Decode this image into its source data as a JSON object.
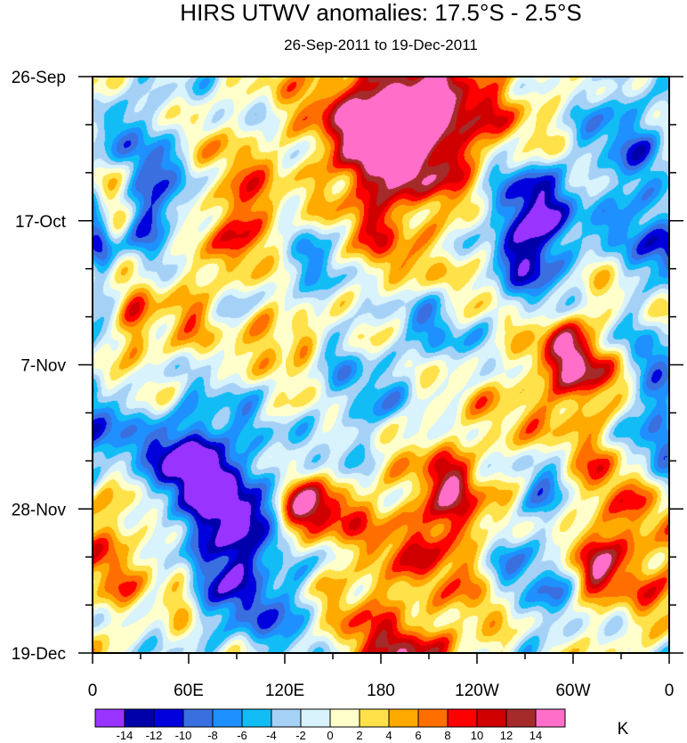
{
  "chart_data": {
    "type": "heatmap",
    "title": "HIRS UTWV anomalies: 17.5°S - 2.5°S",
    "subtitle": "26-Sep-2011 to 19-Dec-2011",
    "xlabel": "",
    "ylabel": "",
    "x_range_deg_east": [
      0,
      360
    ],
    "x_ticks": [
      {
        "deg": 0,
        "label": "0"
      },
      {
        "deg": 60,
        "label": "60E"
      },
      {
        "deg": 120,
        "label": "120E"
      },
      {
        "deg": 180,
        "label": "180"
      },
      {
        "deg": 240,
        "label": "120W"
      },
      {
        "deg": 300,
        "label": "60W"
      },
      {
        "deg": 360,
        "label": "0"
      }
    ],
    "y_range_days": [
      0,
      84
    ],
    "y_ticks": [
      {
        "day": 0,
        "label": "26-Sep"
      },
      {
        "day": 21,
        "label": "17-Oct"
      },
      {
        "day": 42,
        "label": "7-Nov"
      },
      {
        "day": 63,
        "label": "28-Nov"
      },
      {
        "day": 84,
        "label": "19-Dec"
      }
    ],
    "y_minor_tick_interval_days": 7,
    "color_levels": [
      -14,
      -12,
      -10,
      -8,
      -6,
      -4,
      -2,
      0,
      2,
      4,
      6,
      8,
      10,
      12,
      14
    ],
    "color_levels_text": [
      "-14",
      "-12",
      "-10",
      "-8",
      "-6",
      "-4",
      "-2",
      "0",
      "2",
      "4",
      "6",
      "8",
      "10",
      "12",
      "14"
    ],
    "colors": [
      "#9933ff",
      "#0000aa",
      "#0000dd",
      "#3a6fe0",
      "#1f90ff",
      "#12bdf6",
      "#a6d1f6",
      "#d8f3fc",
      "#ffffcc",
      "#ffe14a",
      "#ffaa00",
      "#ff6e00",
      "#ff0000",
      "#d00000",
      "#a52a2a",
      "#ff6ec8"
    ],
    "units": "K",
    "features": [
      {
        "lon": 190,
        "day": 8,
        "value": 14,
        "width_deg": 30,
        "width_days": 6
      },
      {
        "lon": 210,
        "day": 5,
        "value": 8,
        "width_deg": 50,
        "width_days": 9
      },
      {
        "lon": 180,
        "day": 20,
        "value": 6,
        "width_deg": 15,
        "width_days": 14
      },
      {
        "lon": 275,
        "day": 25,
        "value": -13,
        "width_deg": 18,
        "width_days": 7
      },
      {
        "lon": 265,
        "day": 19,
        "value": -8,
        "width_deg": 22,
        "width_days": 6
      },
      {
        "lon": 40,
        "day": 20,
        "value": -10,
        "width_deg": 14,
        "width_days": 5
      },
      {
        "lon": 30,
        "day": 10,
        "value": -6,
        "width_deg": 12,
        "width_days": 8
      },
      {
        "lon": 345,
        "day": 22,
        "value": -8,
        "width_deg": 14,
        "width_days": 5
      },
      {
        "lon": 330,
        "day": 8,
        "value": -7,
        "width_deg": 20,
        "width_days": 8
      },
      {
        "lon": 215,
        "day": 36,
        "value": -7,
        "width_deg": 30,
        "width_days": 5
      },
      {
        "lon": 130,
        "day": 29,
        "value": -5,
        "width_deg": 20,
        "width_days": 6
      },
      {
        "lon": 110,
        "day": 37,
        "value": 9,
        "width_deg": 8,
        "width_days": 3
      },
      {
        "lon": 130,
        "day": 38,
        "value": 8,
        "width_deg": 7,
        "width_days": 3
      },
      {
        "lon": 90,
        "day": 18,
        "value": 8,
        "width_deg": 10,
        "width_days": 5
      },
      {
        "lon": 105,
        "day": 23,
        "value": 8,
        "width_deg": 10,
        "width_days": 4
      },
      {
        "lon": 15,
        "day": 21,
        "value": 6,
        "width_deg": 10,
        "width_days": 5
      },
      {
        "lon": 25,
        "day": 38,
        "value": 9,
        "width_deg": 7,
        "width_days": 4
      },
      {
        "lon": 60,
        "day": 30,
        "value": 5,
        "width_deg": 15,
        "width_days": 8
      },
      {
        "lon": 25,
        "day": 55,
        "value": -9,
        "width_deg": 15,
        "width_days": 6
      },
      {
        "lon": 60,
        "day": 56,
        "value": -11,
        "width_deg": 10,
        "width_days": 4
      },
      {
        "lon": 85,
        "day": 66,
        "value": -12,
        "width_deg": 25,
        "width_days": 7
      },
      {
        "lon": 75,
        "day": 58,
        "value": -8,
        "width_deg": 20,
        "width_days": 8
      },
      {
        "lon": 140,
        "day": 63,
        "value": 11,
        "width_deg": 15,
        "width_days": 3
      },
      {
        "lon": 125,
        "day": 64,
        "value": 8,
        "width_deg": 10,
        "width_days": 3
      },
      {
        "lon": 55,
        "day": 71,
        "value": 9,
        "width_deg": 7,
        "width_days": 5
      },
      {
        "lon": 20,
        "day": 65,
        "value": 6,
        "width_deg": 14,
        "width_days": 8
      },
      {
        "lon": 225,
        "day": 62,
        "value": 10,
        "width_deg": 12,
        "width_days": 6
      },
      {
        "lon": 200,
        "day": 68,
        "value": 6,
        "width_deg": 22,
        "width_days": 10
      },
      {
        "lon": 300,
        "day": 48,
        "value": 7,
        "width_deg": 30,
        "width_days": 12
      },
      {
        "lon": 340,
        "day": 45,
        "value": -9,
        "width_deg": 18,
        "width_days": 8
      },
      {
        "lon": 320,
        "day": 43,
        "value": 8,
        "width_deg": 10,
        "width_days": 3
      },
      {
        "lon": 295,
        "day": 40,
        "value": 9,
        "width_deg": 10,
        "width_days": 4
      },
      {
        "lon": 285,
        "day": 58,
        "value": -9,
        "width_deg": 10,
        "width_days": 5
      },
      {
        "lon": 315,
        "day": 71,
        "value": 10,
        "width_deg": 8,
        "width_days": 4
      },
      {
        "lon": 345,
        "day": 67,
        "value": 7,
        "width_deg": 20,
        "width_days": 9
      },
      {
        "lon": 270,
        "day": 75,
        "value": -7,
        "width_deg": 18,
        "width_days": 8
      },
      {
        "lon": 195,
        "day": 84,
        "value": 9,
        "width_deg": 20,
        "width_days": 3
      },
      {
        "lon": 170,
        "day": 48,
        "value": -6,
        "width_deg": 18,
        "width_days": 6
      },
      {
        "lon": 110,
        "day": 78,
        "value": -6,
        "width_deg": 30,
        "width_days": 6
      },
      {
        "lon": 160,
        "day": 78,
        "value": 5,
        "width_deg": 20,
        "width_days": 8
      },
      {
        "lon": 250,
        "day": 80,
        "value": 6,
        "width_deg": 15,
        "width_days": 5
      },
      {
        "lon": 355,
        "day": 56,
        "value": -8,
        "width_deg": 8,
        "width_days": 6
      },
      {
        "lon": 5,
        "day": 25,
        "value": -10,
        "width_deg": 6,
        "width_days": 3
      },
      {
        "lon": 240,
        "day": 30,
        "value": 5,
        "width_deg": 25,
        "width_days": 8
      }
    ]
  }
}
